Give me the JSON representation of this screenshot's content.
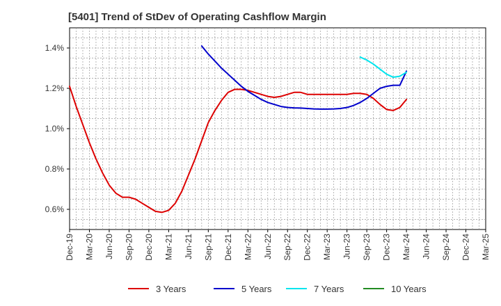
{
  "chart_data": {
    "type": "line",
    "title": "[5401]  Trend of StDev of Operating Cashflow Margin",
    "xlabel": "",
    "ylabel": "",
    "x_ticks": [
      "Dec-19",
      "Mar-20",
      "Jun-20",
      "Sep-20",
      "Dec-20",
      "Mar-21",
      "Jun-21",
      "Sep-21",
      "Dec-21",
      "Mar-22",
      "Jun-22",
      "Sep-22",
      "Dec-22",
      "Mar-23",
      "Jun-23",
      "Sep-23",
      "Dec-23",
      "Mar-24",
      "Jun-24",
      "Sep-24",
      "Dec-24",
      "Mar-25"
    ],
    "y_ticks": [
      "0.6%",
      "0.8%",
      "1.0%",
      "1.2%",
      "1.4%"
    ],
    "y_tick_values": [
      0.6,
      0.8,
      1.0,
      1.2,
      1.4
    ],
    "ylim": [
      0.5,
      1.5
    ],
    "grid": true,
    "legend_position": "bottom",
    "series": [
      {
        "name": "3 Years",
        "color": "#dd0000",
        "x": [
          "Dec-19",
          "Jan-20",
          "Feb-20",
          "Mar-20",
          "Apr-20",
          "May-20",
          "Jun-20",
          "Jul-20",
          "Aug-20",
          "Sep-20",
          "Oct-20",
          "Nov-20",
          "Dec-20",
          "Jan-21",
          "Feb-21",
          "Mar-21",
          "Apr-21",
          "May-21",
          "Jun-21",
          "Jul-21",
          "Aug-21",
          "Sep-21",
          "Oct-21",
          "Nov-21",
          "Dec-21",
          "Jan-22",
          "Feb-22",
          "Mar-22",
          "Apr-22",
          "May-22",
          "Jun-22",
          "Jul-22",
          "Aug-22",
          "Sep-22",
          "Oct-22",
          "Nov-22",
          "Dec-22",
          "Jan-23",
          "Feb-23",
          "Mar-23",
          "Apr-23",
          "May-23",
          "Jun-23",
          "Jul-23",
          "Aug-23",
          "Sep-23",
          "Oct-23",
          "Nov-23",
          "Dec-23",
          "Jan-24",
          "Feb-24",
          "Mar-24"
        ],
        "values": [
          1.21,
          1.11,
          1.02,
          0.93,
          0.85,
          0.78,
          0.72,
          0.68,
          0.66,
          0.66,
          0.65,
          0.63,
          0.61,
          0.59,
          0.585,
          0.595,
          0.63,
          0.69,
          0.77,
          0.85,
          0.94,
          1.03,
          1.09,
          1.14,
          1.18,
          1.195,
          1.195,
          1.19,
          1.18,
          1.17,
          1.16,
          1.155,
          1.16,
          1.17,
          1.18,
          1.18,
          1.17,
          1.17,
          1.17,
          1.17,
          1.17,
          1.17,
          1.17,
          1.175,
          1.175,
          1.17,
          1.15,
          1.12,
          1.095,
          1.09,
          1.105,
          1.145
        ]
      },
      {
        "name": "5 Years",
        "color": "#0000cc",
        "x": [
          "Aug-21",
          "Sep-21",
          "Oct-21",
          "Nov-21",
          "Dec-21",
          "Jan-22",
          "Feb-22",
          "Mar-22",
          "Apr-22",
          "May-22",
          "Jun-22",
          "Jul-22",
          "Aug-22",
          "Sep-22",
          "Oct-22",
          "Nov-22",
          "Dec-22",
          "Jan-23",
          "Feb-23",
          "Mar-23",
          "Apr-23",
          "May-23",
          "Jun-23",
          "Jul-23",
          "Aug-23",
          "Sep-23",
          "Oct-23",
          "Nov-23",
          "Dec-23",
          "Jan-24",
          "Feb-24",
          "Mar-24"
        ],
        "values": [
          1.41,
          1.37,
          1.335,
          1.3,
          1.27,
          1.24,
          1.21,
          1.185,
          1.165,
          1.145,
          1.13,
          1.12,
          1.11,
          1.105,
          1.103,
          1.102,
          1.1,
          1.098,
          1.097,
          1.097,
          1.098,
          1.1,
          1.105,
          1.115,
          1.13,
          1.15,
          1.175,
          1.2,
          1.21,
          1.215,
          1.215,
          1.285
        ]
      },
      {
        "name": "7 Years",
        "color": "#00e5ee",
        "x": [
          "Aug-23",
          "Sep-23",
          "Oct-23",
          "Nov-23",
          "Dec-23",
          "Jan-24",
          "Feb-24",
          "Mar-24"
        ],
        "values": [
          1.355,
          1.34,
          1.32,
          1.295,
          1.27,
          1.255,
          1.26,
          1.28
        ]
      },
      {
        "name": "10 Years",
        "color": "#228b22",
        "x": [],
        "values": []
      }
    ]
  }
}
